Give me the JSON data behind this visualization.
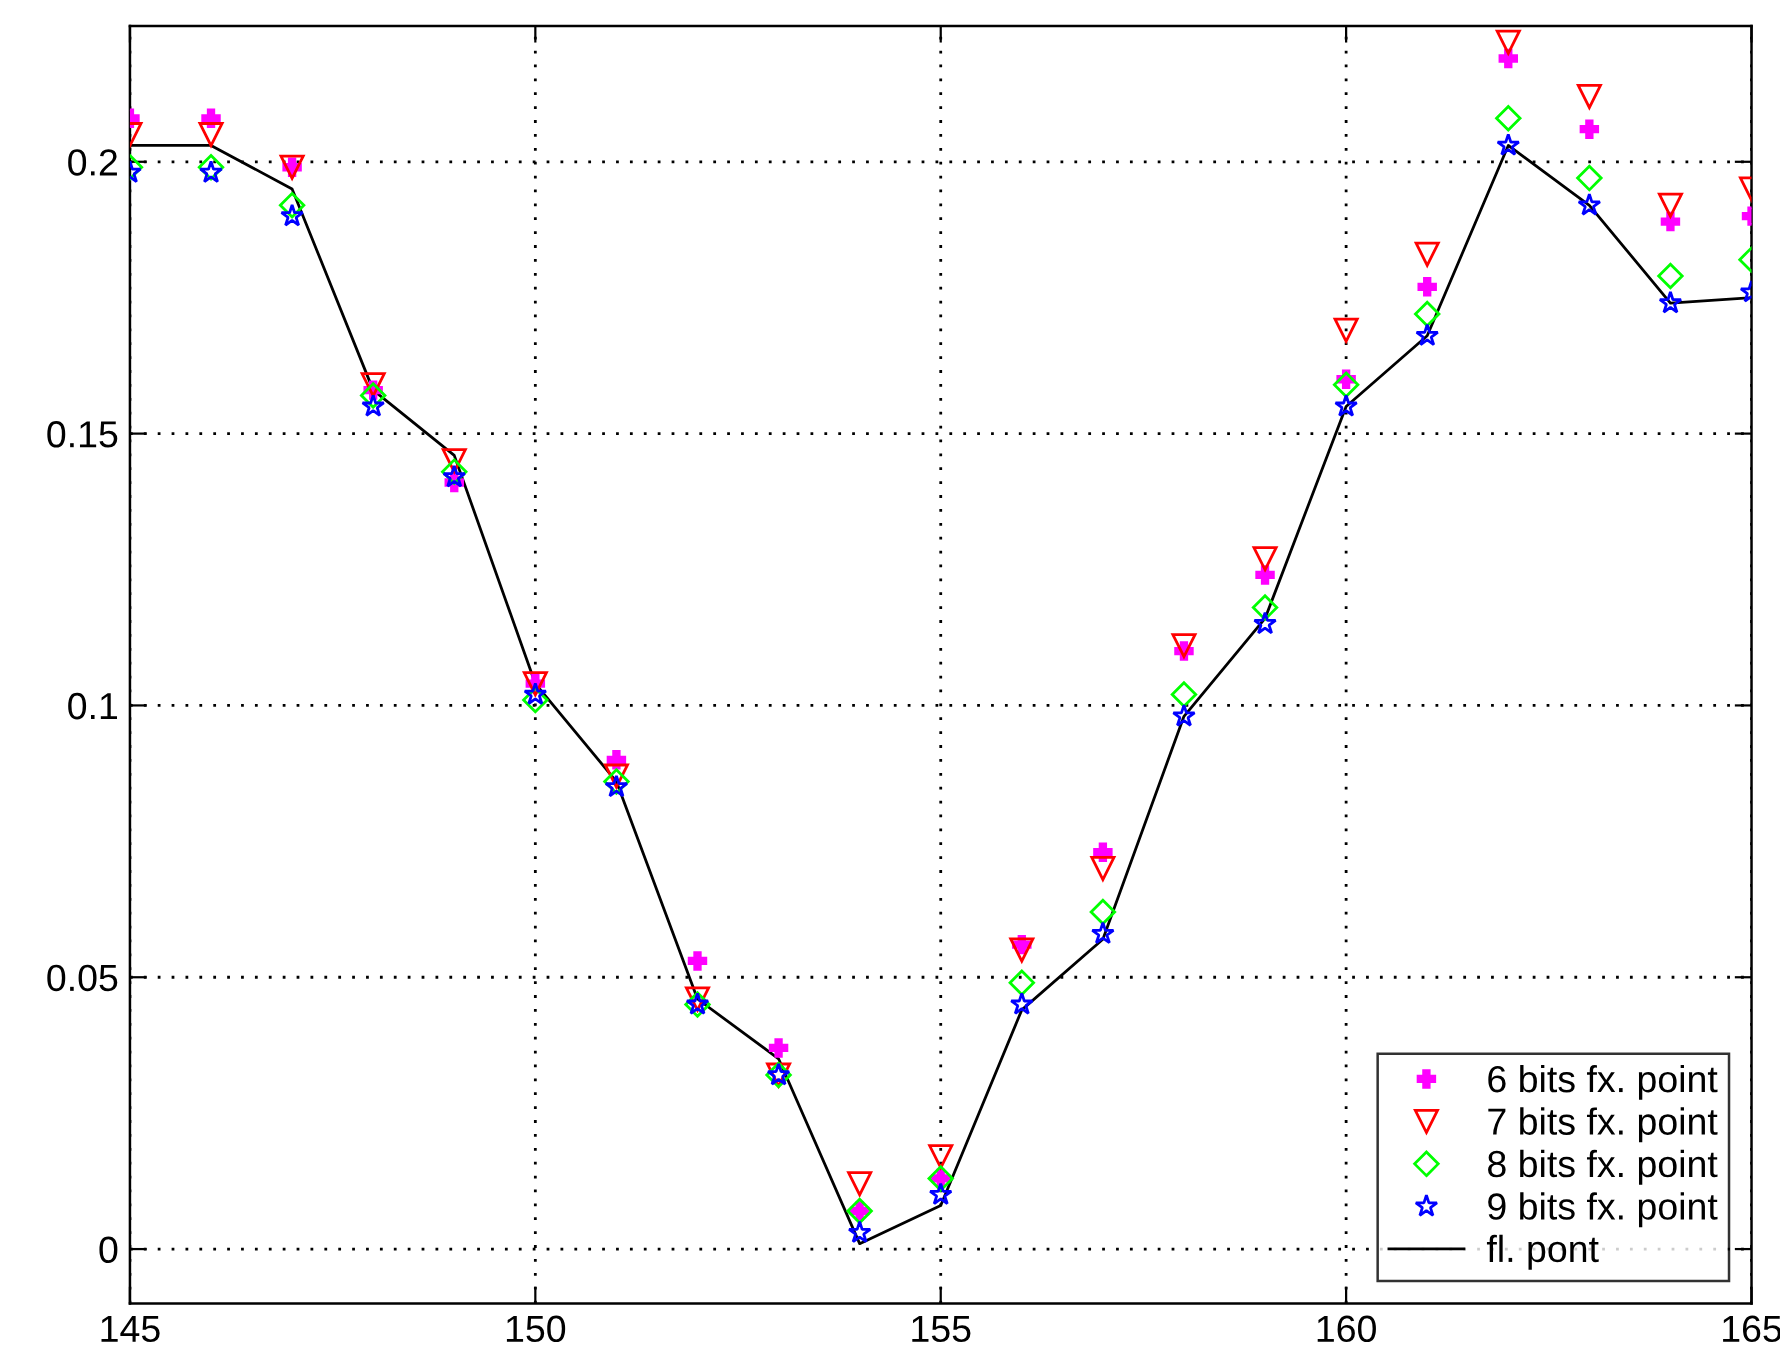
{
  "chart_data": {
    "type": "scatter",
    "x": [
      145,
      146,
      147,
      148,
      149,
      150,
      151,
      152,
      153,
      154,
      155,
      156,
      157,
      158,
      159,
      160,
      161,
      162,
      163,
      164,
      165
    ],
    "series": [
      {
        "name": "6 bits fx. point",
        "color": "#ff00ff",
        "marker": "cross",
        "values": [
          0.208,
          0.208,
          0.199,
          0.158,
          0.141,
          0.104,
          0.09,
          0.053,
          0.037,
          0.007,
          0.013,
          0.056,
          0.073,
          0.11,
          0.124,
          0.16,
          0.177,
          0.219,
          0.206,
          0.189,
          0.19
        ]
      },
      {
        "name": "7 bits fx. point",
        "color": "#ff0000",
        "marker": "triangle",
        "values": [
          0.205,
          0.205,
          0.199,
          0.159,
          0.145,
          0.104,
          0.087,
          0.046,
          0.032,
          0.012,
          0.017,
          0.055,
          0.07,
          0.111,
          0.127,
          0.169,
          0.183,
          0.222,
          0.212,
          0.192,
          0.195
        ]
      },
      {
        "name": "8 bits fx. point",
        "color": "#00ff00",
        "marker": "diamond",
        "values": [
          0.199,
          0.199,
          0.192,
          0.157,
          0.143,
          0.101,
          0.086,
          0.045,
          0.032,
          0.007,
          0.013,
          0.049,
          0.062,
          0.102,
          0.118,
          0.159,
          0.172,
          0.208,
          0.197,
          0.179,
          0.182
        ]
      },
      {
        "name": "9 bits fx. point",
        "color": "#0000ff",
        "marker": "star",
        "values": [
          0.198,
          0.198,
          0.19,
          0.155,
          0.142,
          0.102,
          0.085,
          0.045,
          0.032,
          0.003,
          0.01,
          0.045,
          0.058,
          0.098,
          0.115,
          0.155,
          0.168,
          0.203,
          0.192,
          0.174,
          0.176
        ]
      },
      {
        "name": "fl. pont",
        "color": "#000000",
        "type": "line",
        "marker": "none",
        "line_style": "solid",
        "values": [
          0.203,
          0.203,
          0.195,
          0.158,
          0.146,
          0.104,
          0.086,
          0.046,
          0.035,
          0.001,
          0.008,
          0.044,
          0.057,
          0.098,
          0.116,
          0.155,
          0.168,
          0.203,
          0.192,
          0.174,
          0.175
        ]
      }
    ],
    "xlim": [
      145,
      165
    ],
    "xticks": [
      145,
      150,
      155,
      160,
      165
    ],
    "ylim": [
      -0.01,
      0.225
    ],
    "yticks": [
      0,
      0.05,
      0.1,
      0.15,
      0.2
    ],
    "grid": true,
    "legend": "bottom right"
  }
}
